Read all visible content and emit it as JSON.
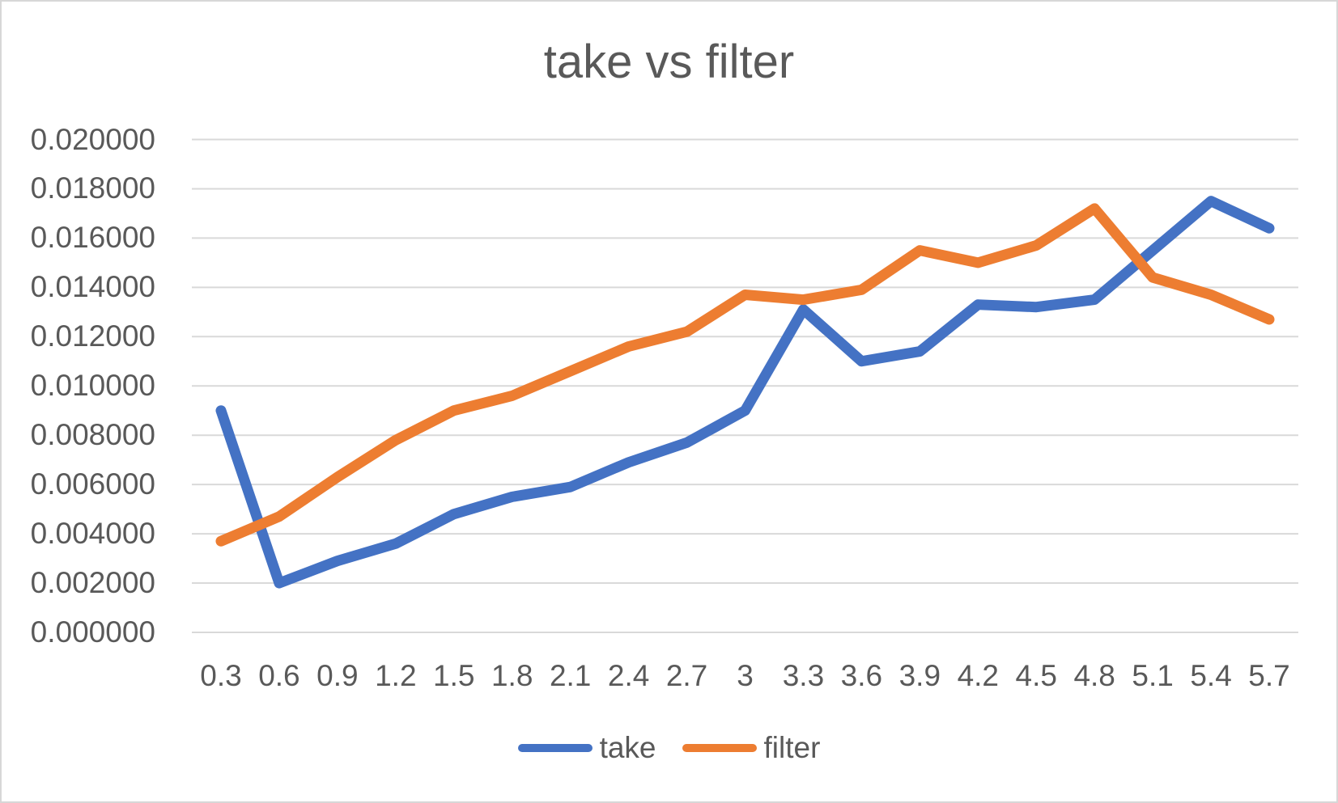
{
  "chart_data": {
    "type": "line",
    "title": "take vs filter",
    "xlabel": "",
    "ylabel": "",
    "grid": true,
    "legend_position": "bottom",
    "categories": [
      "0.3",
      "0.6",
      "0.9",
      "1.2",
      "1.5",
      "1.8",
      "2.1",
      "2.4",
      "2.7",
      "3",
      "3.3",
      "3.6",
      "3.9",
      "4.2",
      "4.5",
      "4.8",
      "5.1",
      "5.4",
      "5.7"
    ],
    "series": [
      {
        "name": "take",
        "color": "#4472C4",
        "values": [
          0.009,
          0.002,
          0.0029,
          0.0036,
          0.0048,
          0.0055,
          0.0059,
          0.0069,
          0.0077,
          0.009,
          0.0131,
          0.011,
          0.0114,
          0.0133,
          0.0132,
          0.0135,
          0.0155,
          0.0175,
          0.0164
        ]
      },
      {
        "name": "filter",
        "color": "#ED7D31",
        "values": [
          0.0037,
          0.0047,
          0.0063,
          0.0078,
          0.009,
          0.0096,
          0.0106,
          0.0116,
          0.0122,
          0.0137,
          0.0135,
          0.0139,
          0.0155,
          0.015,
          0.0157,
          0.0172,
          0.0144,
          0.0137,
          0.0127
        ]
      }
    ],
    "y_axis": {
      "min": 0,
      "max": 0.02,
      "step": 0.002,
      "tick_labels": [
        "0.020000",
        "0.018000",
        "0.016000",
        "0.014000",
        "0.012000",
        "0.010000",
        "0.008000",
        "0.006000",
        "0.004000",
        "0.002000",
        "0.000000"
      ]
    },
    "style": {
      "gridline_color": "#D9D9D9",
      "text_color": "#595959",
      "line_width": 13
    }
  }
}
